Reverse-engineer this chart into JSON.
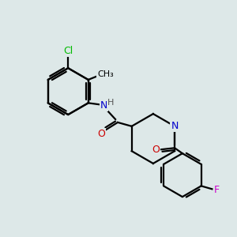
{
  "background_color": "#dde8e8",
  "bond_color": "#000000",
  "atom_colors": {
    "N": "#0000cc",
    "O": "#cc0000",
    "Cl": "#00bb00",
    "F": "#cc00cc",
    "H": "#555555",
    "C": "#000000"
  },
  "figsize": [
    3.0,
    3.0
  ],
  "dpi": 100,
  "bond_lw": 1.6,
  "font_size": 9
}
